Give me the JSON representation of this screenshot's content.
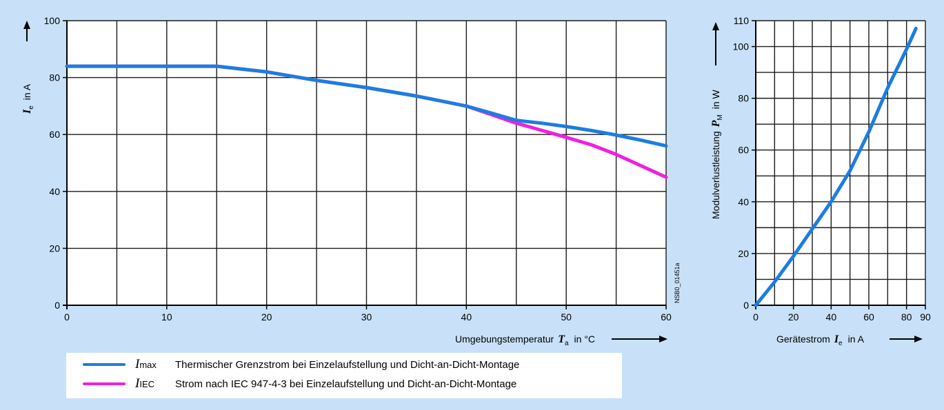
{
  "colors": {
    "background": "#c8e1f8",
    "plot_bg": "#ffffff",
    "grid": "#1a1a1a",
    "series_max": "#1c7de0",
    "series_iec": "#f020e0"
  },
  "left_chart": {
    "ylabel_symbol": "I",
    "ylabel_sub": "e",
    "ylabel_unit": "in A",
    "xlabel_text": "Umgebungstemperatur",
    "xlabel_symbol": "T",
    "xlabel_sub": "a",
    "xlabel_unit": "in °C",
    "side_code": "NSB0_01451a"
  },
  "right_chart": {
    "ylabel_text": "Modulverlustleistung",
    "ylabel_symbol": "P",
    "ylabel_sub": "M",
    "ylabel_unit": "in W",
    "xlabel_text": "Gerätestrom",
    "xlabel_symbol": "I",
    "xlabel_sub": "e",
    "xlabel_unit": "in A"
  },
  "legend": [
    {
      "symbol": "I",
      "sub": "max",
      "text": "Thermischer Grenzstrom bei Einzelaufstellung und Dicht-an-Dicht-Montage",
      "color": "#1c7de0"
    },
    {
      "symbol": "I",
      "sub": "IEC",
      "text": "Strom nach IEC 947-4-3 bei Einzelaufstellung und Dicht-an-Dicht-Montage",
      "color": "#f020e0"
    }
  ],
  "chart_data": [
    {
      "type": "line",
      "xlim": [
        0,
        60
      ],
      "ylim": [
        0,
        100
      ],
      "xticks": [
        0,
        10,
        20,
        30,
        40,
        50,
        60
      ],
      "yticks": [
        0,
        20,
        40,
        60,
        80,
        100
      ],
      "grid": true,
      "series": [
        {
          "name": "I max",
          "color": "#1c7de0",
          "x": [
            0,
            15,
            20,
            25,
            30,
            35,
            40,
            42.5,
            45,
            47.5,
            50,
            52.5,
            55,
            57.5,
            60
          ],
          "y": [
            84,
            84,
            82,
            79,
            76.5,
            73.5,
            70,
            67.5,
            65,
            64,
            62.8,
            61.4,
            59.8,
            58,
            56
          ]
        },
        {
          "name": "I IEC",
          "color": "#f020e0",
          "x": [
            0,
            15,
            20,
            25,
            30,
            35,
            40,
            42.5,
            45,
            47.5,
            50,
            52.5,
            55,
            57.5,
            60
          ],
          "y": [
            84,
            84,
            82,
            79,
            76.5,
            73.5,
            70,
            67,
            64,
            61.5,
            59,
            56.4,
            53,
            49,
            45
          ]
        }
      ]
    },
    {
      "type": "line",
      "xlim": [
        0,
        90
      ],
      "ylim": [
        0,
        110
      ],
      "xticks": [
        0,
        20,
        40,
        60,
        80,
        90
      ],
      "yticks": [
        0,
        20,
        40,
        60,
        80,
        100,
        110
      ],
      "grid": true,
      "series": [
        {
          "color": "#1c7de0",
          "x": [
            0,
            10,
            20,
            30,
            40,
            50,
            60,
            70,
            80,
            85
          ],
          "y": [
            0,
            9,
            19,
            29.5,
            40,
            52,
            67,
            84,
            99,
            107
          ]
        }
      ]
    }
  ]
}
